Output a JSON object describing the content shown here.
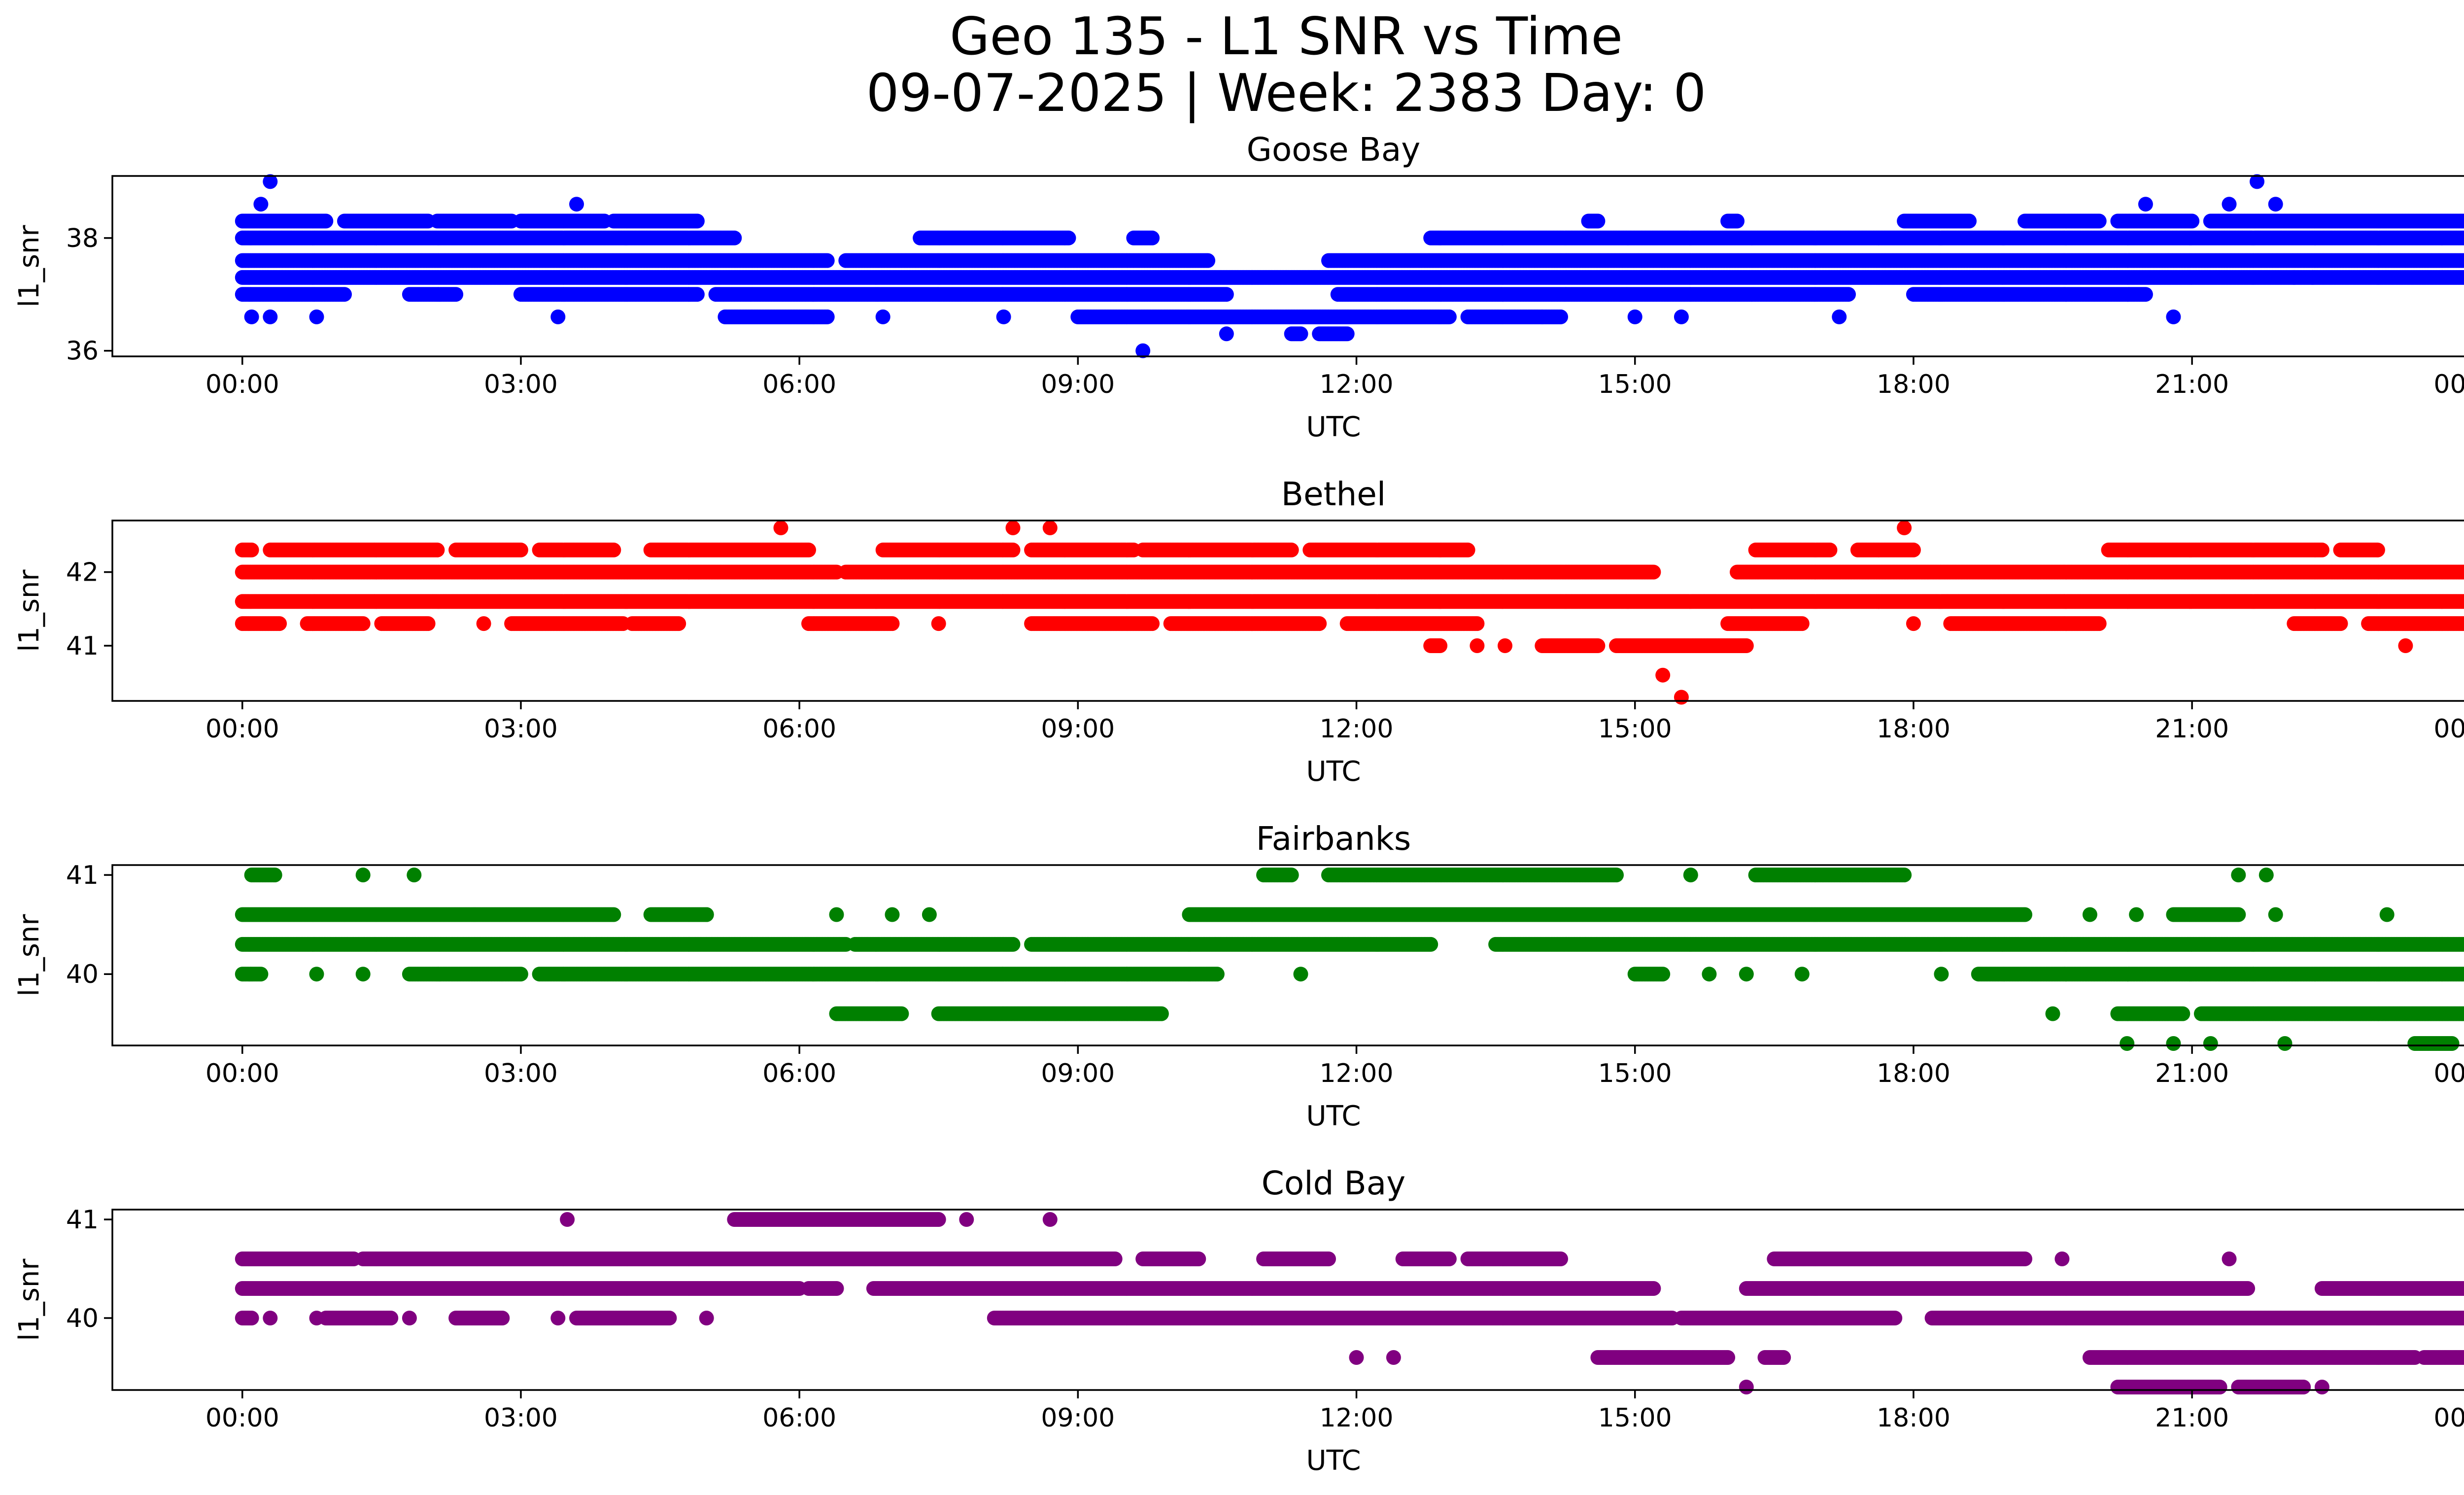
{
  "figure": {
    "title_line1": "Geo 135 - L1 SNR vs Time",
    "title_line2": "09-07-2025 | Week: 2383 Day: 0"
  },
  "chart_data": [
    {
      "type": "scatter",
      "title": "Goose Bay",
      "xlabel": "UTC",
      "ylabel": "l1_snr",
      "xlim": [
        "2025-09-07 -01:24",
        "2025-09-08 00:55"
      ],
      "ylim": [
        35.9,
        39.1
      ],
      "xticks": [
        "00:00",
        "03:00",
        "06:00",
        "09:00",
        "12:00",
        "15:00",
        "18:00",
        "21:00",
        "00:00"
      ],
      "yticks": [
        36,
        38
      ],
      "color": "#0000ff",
      "levels": [
        {
          "y": 38.3,
          "segments": [
            [
              0.0,
              0.9
            ],
            [
              1.1,
              2.0
            ],
            [
              2.1,
              2.9
            ],
            [
              3.0,
              3.9
            ],
            [
              4.0,
              4.9
            ],
            [
              14.5,
              14.6
            ],
            [
              16.0,
              16.1
            ],
            [
              17.9,
              18.6
            ],
            [
              19.2,
              20.0
            ],
            [
              20.2,
              21.0
            ],
            [
              21.2,
              24.0
            ]
          ]
        },
        {
          "y": 38.0,
          "segments": [
            [
              0.0,
              5.3
            ],
            [
              7.3,
              8.9
            ],
            [
              9.6,
              9.8
            ],
            [
              12.8,
              24.0
            ]
          ]
        },
        {
          "y": 37.6,
          "segments": [
            [
              0.0,
              6.3
            ],
            [
              6.5,
              10.4
            ],
            [
              11.7,
              24.0
            ]
          ]
        },
        {
          "y": 37.3,
          "segments": [
            [
              0.0,
              24.0
            ]
          ]
        },
        {
          "y": 37.0,
          "segments": [
            [
              0.0,
              1.1
            ],
            [
              1.8,
              2.3
            ],
            [
              3.0,
              4.9
            ],
            [
              5.1,
              10.6
            ],
            [
              11.8,
              17.3
            ],
            [
              18.0,
              20.5
            ]
          ]
        },
        {
          "y": 36.6,
          "segments": [
            [
              5.2,
              6.3
            ],
            [
              9.0,
              13.0
            ],
            [
              13.2,
              14.2
            ]
          ]
        },
        {
          "y": 36.3,
          "segments": [
            [
              11.3,
              11.4
            ],
            [
              11.6,
              11.9
            ]
          ]
        }
      ],
      "outliers": [
        [
          0.3,
          39.0
        ],
        [
          21.7,
          39.0
        ],
        [
          3.6,
          38.6
        ],
        [
          0.2,
          38.6
        ],
        [
          20.5,
          38.6
        ],
        [
          21.4,
          38.6
        ],
        [
          21.9,
          38.6
        ],
        [
          10.6,
          36.3
        ],
        [
          9.7,
          36.0
        ],
        [
          0.1,
          36.6
        ],
        [
          0.3,
          36.6
        ],
        [
          0.8,
          36.6
        ],
        [
          3.4,
          36.6
        ],
        [
          6.9,
          36.6
        ],
        [
          8.2,
          36.6
        ],
        [
          14.0,
          36.6
        ],
        [
          15.0,
          36.6
        ],
        [
          15.5,
          36.6
        ],
        [
          17.2,
          36.6
        ],
        [
          20.8,
          36.6
        ],
        [
          22.1,
          37.3
        ],
        [
          22.3,
          37.3
        ]
      ]
    },
    {
      "type": "scatter",
      "title": "Bethel",
      "xlabel": "UTC",
      "ylabel": "l1_snr",
      "xlim": [
        "2025-09-07 -01:24",
        "2025-09-08 00:55"
      ],
      "ylim": [
        40.25,
        42.7
      ],
      "xticks": [
        "00:00",
        "03:00",
        "06:00",
        "09:00",
        "12:00",
        "15:00",
        "18:00",
        "21:00",
        "00:00"
      ],
      "yticks": [
        41,
        42
      ],
      "color": "#ff0000",
      "levels": [
        {
          "y": 42.3,
          "segments": [
            [
              0.0,
              0.1
            ],
            [
              0.3,
              2.1
            ],
            [
              2.3,
              3.0
            ],
            [
              3.2,
              4.0
            ],
            [
              4.4,
              6.1
            ],
            [
              6.9,
              8.3
            ],
            [
              8.5,
              9.6
            ],
            [
              9.7,
              11.3
            ],
            [
              11.5,
              13.2
            ],
            [
              16.3,
              17.1
            ],
            [
              17.4,
              18.0
            ],
            [
              20.1,
              22.4
            ],
            [
              22.6,
              23.0
            ]
          ]
        },
        {
          "y": 42.0,
          "segments": [
            [
              0.0,
              6.4
            ],
            [
              6.5,
              15.2
            ],
            [
              16.1,
              24.0
            ]
          ]
        },
        {
          "y": 41.6,
          "segments": [
            [
              0.0,
              24.0
            ]
          ]
        },
        {
          "y": 41.3,
          "segments": [
            [
              0.0,
              0.4
            ],
            [
              0.7,
              1.3
            ],
            [
              1.5,
              2.0
            ],
            [
              2.9,
              4.1
            ],
            [
              4.2,
              4.7
            ],
            [
              6.1,
              7.0
            ],
            [
              8.5,
              9.8
            ],
            [
              10.0,
              11.6
            ],
            [
              11.9,
              13.3
            ],
            [
              16.0,
              16.8
            ],
            [
              18.4,
              20.0
            ],
            [
              22.1,
              22.6
            ],
            [
              22.9,
              24.0
            ]
          ]
        },
        {
          "y": 41.0,
          "segments": [
            [
              12.8,
              12.9
            ],
            [
              14.0,
              14.6
            ],
            [
              14.8,
              16.2
            ]
          ]
        }
      ],
      "outliers": [
        [
          5.8,
          42.6
        ],
        [
          8.3,
          42.6
        ],
        [
          8.7,
          42.6
        ],
        [
          17.9,
          42.6
        ],
        [
          13.3,
          41.0
        ],
        [
          13.6,
          41.0
        ],
        [
          23.3,
          41.0
        ],
        [
          15.3,
          40.6
        ],
        [
          15.5,
          40.3
        ],
        [
          2.6,
          41.3
        ],
        [
          7.5,
          41.3
        ],
        [
          18.0,
          41.3
        ]
      ]
    },
    {
      "type": "scatter",
      "title": "Fairbanks",
      "xlabel": "UTC",
      "ylabel": "l1_snr",
      "xlim": [
        "2025-09-07 -01:24",
        "2025-09-08 00:55"
      ],
      "ylim": [
        39.28,
        41.1
      ],
      "xticks": [
        "00:00",
        "03:00",
        "06:00",
        "09:00",
        "12:00",
        "15:00",
        "18:00",
        "21:00",
        "00:00"
      ],
      "yticks": [
        40,
        41
      ],
      "color": "#008000",
      "levels": [
        {
          "y": 41.0,
          "segments": [
            [
              0.1,
              0.35
            ],
            [
              11.0,
              11.3
            ],
            [
              11.7,
              14.8
            ],
            [
              16.3,
              17.9
            ]
          ]
        },
        {
          "y": 40.6,
          "segments": [
            [
              0.0,
              2.5
            ],
            [
              2.5,
              4.0
            ],
            [
              4.4,
              5.0
            ],
            [
              10.2,
              19.2
            ],
            [
              20.8,
              21.5
            ]
          ]
        },
        {
          "y": 40.3,
          "segments": [
            [
              0.0,
              6.5
            ],
            [
              6.6,
              8.3
            ],
            [
              8.5,
              12.8
            ],
            [
              13.5,
              24.0
            ]
          ]
        },
        {
          "y": 40.0,
          "segments": [
            [
              0.0,
              0.2
            ],
            [
              1.8,
              3.0
            ],
            [
              3.2,
              10.5
            ],
            [
              15.0,
              15.3
            ],
            [
              18.7,
              24.0
            ]
          ]
        },
        {
          "y": 39.6,
          "segments": [
            [
              6.4,
              7.1
            ],
            [
              7.5,
              9.9
            ],
            [
              20.2,
              20.9
            ],
            [
              21.1,
              24.0
            ]
          ]
        },
        {
          "y": 39.3,
          "segments": [
            [
              23.4,
              23.8
            ]
          ]
        }
      ],
      "outliers": [
        [
          1.3,
          41.0
        ],
        [
          1.85,
          41.0
        ],
        [
          15.6,
          41.0
        ],
        [
          21.5,
          41.0
        ],
        [
          21.8,
          41.0
        ],
        [
          5.0,
          40.6
        ],
        [
          6.4,
          40.6
        ],
        [
          7.0,
          40.6
        ],
        [
          7.4,
          40.6
        ],
        [
          19.9,
          40.6
        ],
        [
          20.4,
          40.6
        ],
        [
          21.9,
          40.6
        ],
        [
          23.1,
          40.6
        ],
        [
          0.8,
          40.0
        ],
        [
          1.3,
          40.0
        ],
        [
          11.4,
          40.0
        ],
        [
          15.8,
          40.0
        ],
        [
          16.2,
          40.0
        ],
        [
          16.8,
          40.0
        ],
        [
          18.3,
          40.0
        ],
        [
          19.5,
          39.6
        ],
        [
          20.3,
          39.3
        ],
        [
          20.8,
          39.3
        ],
        [
          21.2,
          39.3
        ],
        [
          22.0,
          39.3
        ]
      ]
    },
    {
      "type": "scatter",
      "title": "Cold Bay",
      "xlabel": "UTC",
      "ylabel": "l1_snr",
      "xlim": [
        "2025-09-07 -01:24",
        "2025-09-08 00:55"
      ],
      "ylim": [
        39.27,
        41.1
      ],
      "xticks": [
        "00:00",
        "03:00",
        "06:00",
        "09:00",
        "12:00",
        "15:00",
        "18:00",
        "21:00",
        "00:00"
      ],
      "yticks": [
        40,
        41
      ],
      "color": "#800080",
      "levels": [
        {
          "y": 41.0,
          "segments": [
            [
              5.3,
              7.5
            ]
          ]
        },
        {
          "y": 40.6,
          "segments": [
            [
              0.0,
              1.2
            ],
            [
              1.3,
              9.4
            ],
            [
              9.7,
              10.3
            ],
            [
              11.0,
              11.7
            ],
            [
              12.5,
              13.0
            ],
            [
              13.2,
              14.2
            ],
            [
              16.5,
              19.2
            ]
          ]
        },
        {
          "y": 40.3,
          "segments": [
            [
              0.0,
              6.0
            ],
            [
              6.1,
              6.4
            ],
            [
              6.8,
              15.2
            ],
            [
              16.2,
              21.6
            ],
            [
              22.4,
              24.0
            ]
          ]
        },
        {
          "y": 40.0,
          "segments": [
            [
              0.0,
              0.1
            ],
            [
              0.9,
              1.6
            ],
            [
              2.3,
              2.8
            ],
            [
              3.6,
              4.6
            ],
            [
              8.1,
              15.4
            ],
            [
              15.5,
              17.8
            ],
            [
              18.2,
              24.0
            ]
          ]
        },
        {
          "y": 39.6,
          "segments": [
            [
              14.6,
              16.0
            ],
            [
              16.4,
              16.6
            ],
            [
              19.9,
              23.4
            ],
            [
              23.5,
              24.0
            ]
          ]
        },
        {
          "y": 39.3,
          "segments": [
            [
              20.2,
              21.3
            ],
            [
              21.5,
              22.2
            ]
          ]
        }
      ],
      "outliers": [
        [
          3.5,
          41.0
        ],
        [
          7.8,
          41.0
        ],
        [
          8.7,
          41.0
        ],
        [
          19.6,
          40.6
        ],
        [
          21.4,
          40.6
        ],
        [
          0.3,
          40.0
        ],
        [
          0.8,
          40.0
        ],
        [
          1.8,
          40.0
        ],
        [
          3.4,
          40.0
        ],
        [
          5.0,
          40.0
        ],
        [
          12.0,
          39.6
        ],
        [
          12.4,
          39.6
        ],
        [
          16.2,
          39.3
        ],
        [
          22.4,
          39.3
        ]
      ]
    }
  ]
}
